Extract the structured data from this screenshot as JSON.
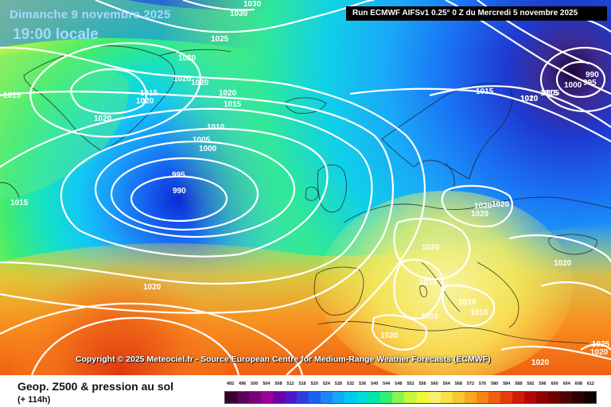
{
  "header": {
    "date_line": "Dimanche 9 novembre 2025",
    "time_line": "19:00 locale",
    "run_info": "Run ECMWF AIFSv1 0.25° 0 Z du Mercredi 5 novembre 2025"
  },
  "copyright": "Copyright © 2025 Meteociel.fr - Source European Centre for Medium-Range Weather Forecasts (ECMWF)",
  "footer": {
    "title": "Geop. Z500 & pression au sol",
    "subtitle": "(+ 114h)"
  },
  "legend": {
    "labels": [
      "492",
      "496",
      "500",
      "504",
      "508",
      "512",
      "516",
      "520",
      "524",
      "528",
      "532",
      "536",
      "540",
      "544",
      "548",
      "552",
      "556",
      "560",
      "564",
      "568",
      "572",
      "576",
      "580",
      "584",
      "588",
      "592",
      "596",
      "600",
      "604",
      "608",
      "612"
    ],
    "colors": [
      "#3a0030",
      "#5c005c",
      "#7a007a",
      "#9a009a",
      "#6a00a8",
      "#4a18c8",
      "#2c3ee0",
      "#1c62f0",
      "#1a86f8",
      "#12aaf8",
      "#00c8f0",
      "#00dcd8",
      "#00e8a8",
      "#30f070",
      "#88f450",
      "#c8f83a",
      "#f0f838",
      "#f8f070",
      "#f8e048",
      "#f8c830",
      "#f8a824",
      "#f88418",
      "#f06010",
      "#e83c0c",
      "#d01c08",
      "#b00808",
      "#900000",
      "#700000",
      "#500000",
      "#300000",
      "#100000"
    ]
  },
  "map": {
    "isobar_labels": [
      "1030",
      "1030",
      "1025",
      "1020",
      "1020",
      "1020",
      "1015",
      "1015",
      "1020",
      "1020",
      "1015",
      "1020",
      "1015",
      "1010",
      "1005",
      "1000",
      "995",
      "990",
      "1015",
      "1020",
      "1015",
      "1010",
      "1005",
      "1000",
      "995",
      "990",
      "1020",
      "1020",
      "1020",
      "1020",
      "1015",
      "1010",
      "1010",
      "1015",
      "1020",
      "1020",
      "1020",
      "1020",
      "1020",
      "1025"
    ],
    "colors": {
      "background": "#ffffff",
      "isobar": "#ffffff",
      "low_center": "#0a2ad8",
      "high_south": "#e84010"
    }
  }
}
